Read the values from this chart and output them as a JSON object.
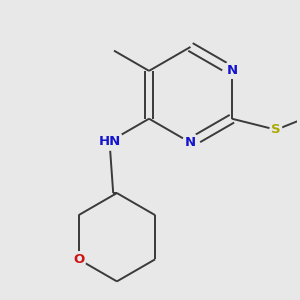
{
  "background_color": "#e8e8e8",
  "bond_color": "#3a3a3a",
  "n_color": "#1414cc",
  "o_color": "#cc1414",
  "s_color": "#aaaa00",
  "bond_width": 1.4,
  "font_size": 9.5,
  "figsize": [
    3.0,
    3.0
  ],
  "dpi": 100,
  "xlim": [
    -1.8,
    2.2
  ],
  "ylim": [
    -2.2,
    1.8
  ]
}
